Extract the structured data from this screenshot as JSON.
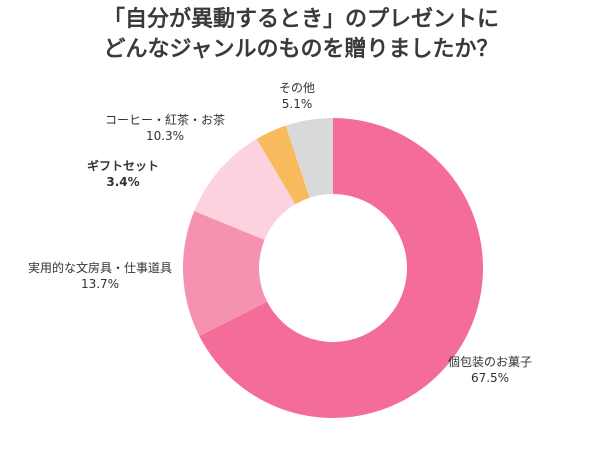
{
  "chart_data": {
    "type": "donut",
    "title": [
      "「自分が異動するとき」のプレゼントに",
      "どんなジャンルのものを贈りましたか？"
    ],
    "categories": [
      "個包装のお菓子",
      "実用的な文房具・仕事道具",
      "コーヒー・紅茶・お茶",
      "ギフトセット",
      "その他"
    ],
    "values": [
      67.5,
      13.7,
      10.3,
      3.4,
      5.1
    ],
    "value_labels": [
      "67.5%",
      "13.7%",
      "10.3%",
      "3.4%",
      "5.1%"
    ],
    "colors": [
      "#f46d98",
      "#f592b0",
      "#fbd2de",
      "#f9ba5e",
      "#d9d9d9"
    ]
  }
}
